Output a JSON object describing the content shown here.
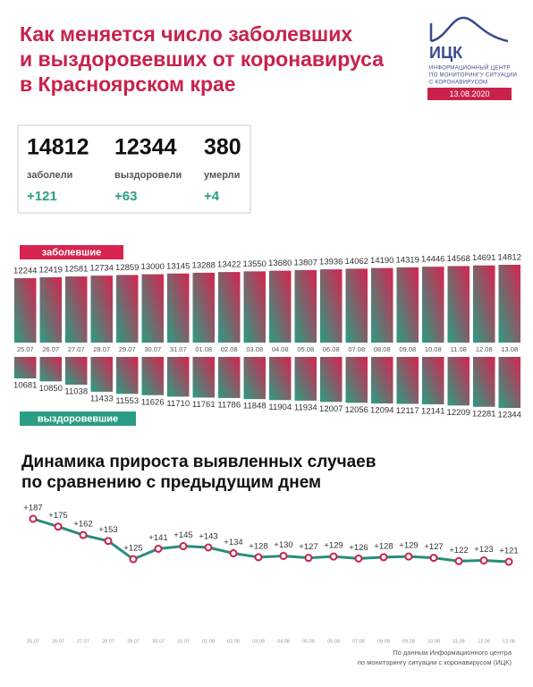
{
  "title_lines": [
    "Как меняется число заболевших",
    "и выздоровевших от коронавируса",
    "в Красноярском крае"
  ],
  "logo": {
    "name": "ИЦК",
    "lines": [
      "ИНФОРМАЦИОННЫЙ ЦЕНТР",
      "ПО МОНИТОРИНГУ СИТУАЦИИ",
      "С КОРОНАВИРУСОМ"
    ],
    "date": "13.08.2020"
  },
  "stats": [
    {
      "value": 14812,
      "label": "заболели",
      "delta": "+121"
    },
    {
      "value": 12344,
      "label": "выздоровели",
      "delta": "+63"
    },
    {
      "value": 380,
      "label": "умерли",
      "delta": "+4"
    }
  ],
  "chart_data": [
    {
      "type": "diverging-bar",
      "categories": [
        "25.07",
        "26.07",
        "27.07",
        "28.07",
        "29.07",
        "30.07",
        "31.07",
        "01.08",
        "02.08",
        "03.08",
        "04.08",
        "05.08",
        "06.08",
        "07.08",
        "08.08",
        "09.08",
        "10.08",
        "11.08",
        "12.08",
        "13.08"
      ],
      "series": [
        {
          "name": "заболевшие",
          "color": "#d6244f",
          "values": [
            12244,
            12419,
            12581,
            12734,
            12859,
            13000,
            13145,
            13288,
            13422,
            13550,
            13680,
            13807,
            13936,
            14062,
            14190,
            14319,
            14446,
            14568,
            14691,
            14812
          ]
        },
        {
          "name": "выздоровевшие",
          "color": "#2a9d84",
          "values": [
            10681,
            10850,
            11038,
            11433,
            11553,
            11626,
            11710,
            11761,
            11786,
            11848,
            11904,
            11934,
            12007,
            12056,
            12094,
            12117,
            12141,
            12209,
            12281,
            12344
          ]
        }
      ]
    },
    {
      "type": "line",
      "title": [
        "Динамика прироста выявленных случаев",
        "по сравнению с предыдущим днем"
      ],
      "categories": [
        "25.07",
        "26.07",
        "27.07",
        "28.07",
        "29.07",
        "30.07",
        "31.07",
        "01.08",
        "02.08",
        "03.08",
        "04.08",
        "05.08",
        "06.08",
        "07.08",
        "08.08",
        "09.08",
        "10.08",
        "11.08",
        "12.08",
        "13.08"
      ],
      "values": [
        187,
        175,
        162,
        153,
        125,
        141,
        145,
        143,
        134,
        128,
        130,
        127,
        129,
        126,
        128,
        129,
        127,
        122,
        123,
        121
      ],
      "value_labels": [
        "+187",
        "+175",
        "+162",
        "+153",
        "+125",
        "+141",
        "+145",
        "+143",
        "+134",
        "+128",
        "+130",
        "+127",
        "+129",
        "+126",
        "+128",
        "+129",
        "+127",
        "+122",
        "+123",
        "+121"
      ],
      "color": "#2a8c7c",
      "marker_color": "#c8224b"
    }
  ],
  "footer": [
    "По данным Информационного центра",
    "по мониторингу ситуации с коронавирусом (ИЦК)"
  ]
}
